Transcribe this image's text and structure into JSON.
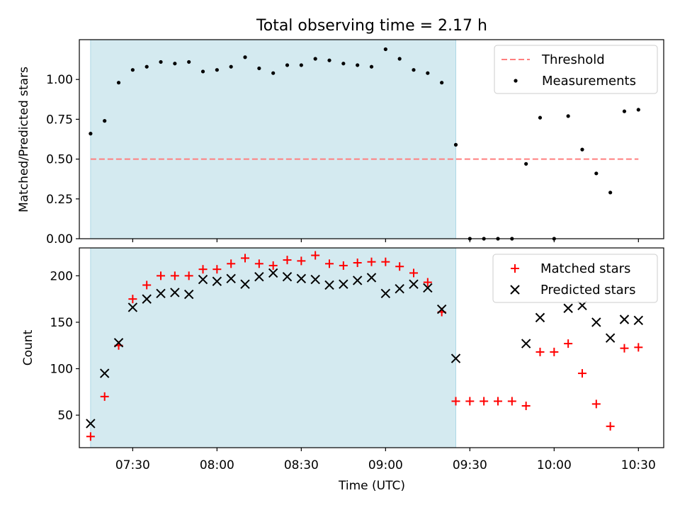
{
  "chart_data": [
    {
      "type": "scatter",
      "title": "Total observing time = 2.17 h",
      "ylabel": "Matched/Predicted stars",
      "xlabel": "",
      "xlim": [
        "07:11",
        "10:39"
      ],
      "ylim": [
        0,
        1.25
      ],
      "x_ticks": [
        "07:30",
        "08:00",
        "08:30",
        "09:00",
        "09:30",
        "10:00",
        "10:30"
      ],
      "y_ticks": [
        "0.00",
        "0.25",
        "0.50",
        "0.75",
        "1.00"
      ],
      "shaded_span": [
        "07:15",
        "09:25"
      ],
      "shade_color": "#d4eaf0",
      "threshold": {
        "name": "Threshold",
        "value": 0.5,
        "x_range": [
          "07:15",
          "10:30"
        ],
        "color": "#ff7f7f"
      },
      "series": [
        {
          "name": "Measurements",
          "color": "#000000",
          "marker": "dot",
          "x": [
            "07:15",
            "07:20",
            "07:25",
            "07:30",
            "07:35",
            "07:40",
            "07:45",
            "07:50",
            "07:55",
            "08:00",
            "08:05",
            "08:10",
            "08:15",
            "08:20",
            "08:25",
            "08:30",
            "08:35",
            "08:40",
            "08:45",
            "08:50",
            "08:55",
            "09:00",
            "09:05",
            "09:10",
            "09:15",
            "09:20",
            "09:25",
            "09:30",
            "09:35",
            "09:40",
            "09:45",
            "09:50",
            "09:55",
            "10:00",
            "10:05",
            "10:10",
            "10:15",
            "10:20",
            "10:25",
            "10:30"
          ],
          "y": [
            0.66,
            0.74,
            0.98,
            1.06,
            1.08,
            1.11,
            1.1,
            1.11,
            1.05,
            1.06,
            1.08,
            1.14,
            1.07,
            1.04,
            1.09,
            1.09,
            1.13,
            1.12,
            1.1,
            1.09,
            1.08,
            1.19,
            1.13,
            1.06,
            1.04,
            0.98,
            0.59,
            0.0,
            0.0,
            0.0,
            0.0,
            0.47,
            0.76,
            0.0,
            0.77,
            0.56,
            0.41,
            0.29,
            0.8,
            0.81
          ]
        }
      ],
      "legend": {
        "placement": "top-right",
        "entries": [
          "Threshold",
          "Measurements"
        ]
      },
      "grid": false
    },
    {
      "type": "scatter",
      "title": "",
      "ylabel": "Count",
      "xlabel": "Time (UTC)",
      "xlim": [
        "07:11",
        "10:39"
      ],
      "ylim": [
        15,
        230
      ],
      "x_ticks": [
        "07:30",
        "08:00",
        "08:30",
        "09:00",
        "09:30",
        "10:00",
        "10:30"
      ],
      "y_ticks": [
        "50",
        "100",
        "150",
        "200"
      ],
      "shaded_span": [
        "07:15",
        "09:25"
      ],
      "shade_color": "#d4eaf0",
      "series": [
        {
          "name": "Matched stars",
          "color": "#ff0000",
          "marker": "plus",
          "x": [
            "07:15",
            "07:20",
            "07:25",
            "07:30",
            "07:35",
            "07:40",
            "07:45",
            "07:50",
            "07:55",
            "08:00",
            "08:05",
            "08:10",
            "08:15",
            "08:20",
            "08:25",
            "08:30",
            "08:35",
            "08:40",
            "08:45",
            "08:50",
            "08:55",
            "09:00",
            "09:05",
            "09:10",
            "09:15",
            "09:20",
            "09:25",
            "09:30",
            "09:35",
            "09:40",
            "09:45",
            "09:50",
            "09:55",
            "10:00",
            "10:05",
            "10:10",
            "10:15",
            "10:20",
            "10:25",
            "10:30"
          ],
          "y": [
            27,
            70,
            125,
            175,
            190,
            200,
            200,
            200,
            207,
            207,
            213,
            219,
            213,
            211,
            217,
            216,
            222,
            213,
            211,
            214,
            215,
            215,
            210,
            203,
            193,
            161,
            65,
            65,
            65,
            65,
            65,
            60,
            118,
            118,
            127,
            95,
            62,
            38,
            122,
            123
          ]
        },
        {
          "name": "Predicted stars",
          "color": "#000000",
          "marker": "x",
          "x": [
            "07:15",
            "07:20",
            "07:25",
            "07:30",
            "07:35",
            "07:40",
            "07:45",
            "07:50",
            "07:55",
            "08:00",
            "08:05",
            "08:10",
            "08:15",
            "08:20",
            "08:25",
            "08:30",
            "08:35",
            "08:40",
            "08:45",
            "08:50",
            "08:55",
            "09:00",
            "09:05",
            "09:10",
            "09:15",
            "09:20",
            "09:25",
            "09:50",
            "09:55",
            "10:05",
            "10:10",
            "10:15",
            "10:20",
            "10:25",
            "10:30"
          ],
          "y": [
            41,
            95,
            128,
            166,
            175,
            181,
            182,
            180,
            196,
            194,
            197,
            191,
            199,
            203,
            199,
            197,
            196,
            190,
            191,
            195,
            198,
            181,
            186,
            191,
            187,
            164,
            111,
            127,
            155,
            165,
            168,
            150,
            133,
            153,
            152
          ]
        }
      ],
      "legend": {
        "placement": "top-right",
        "entries": [
          "Matched stars",
          "Predicted stars"
        ]
      },
      "grid": false
    }
  ]
}
